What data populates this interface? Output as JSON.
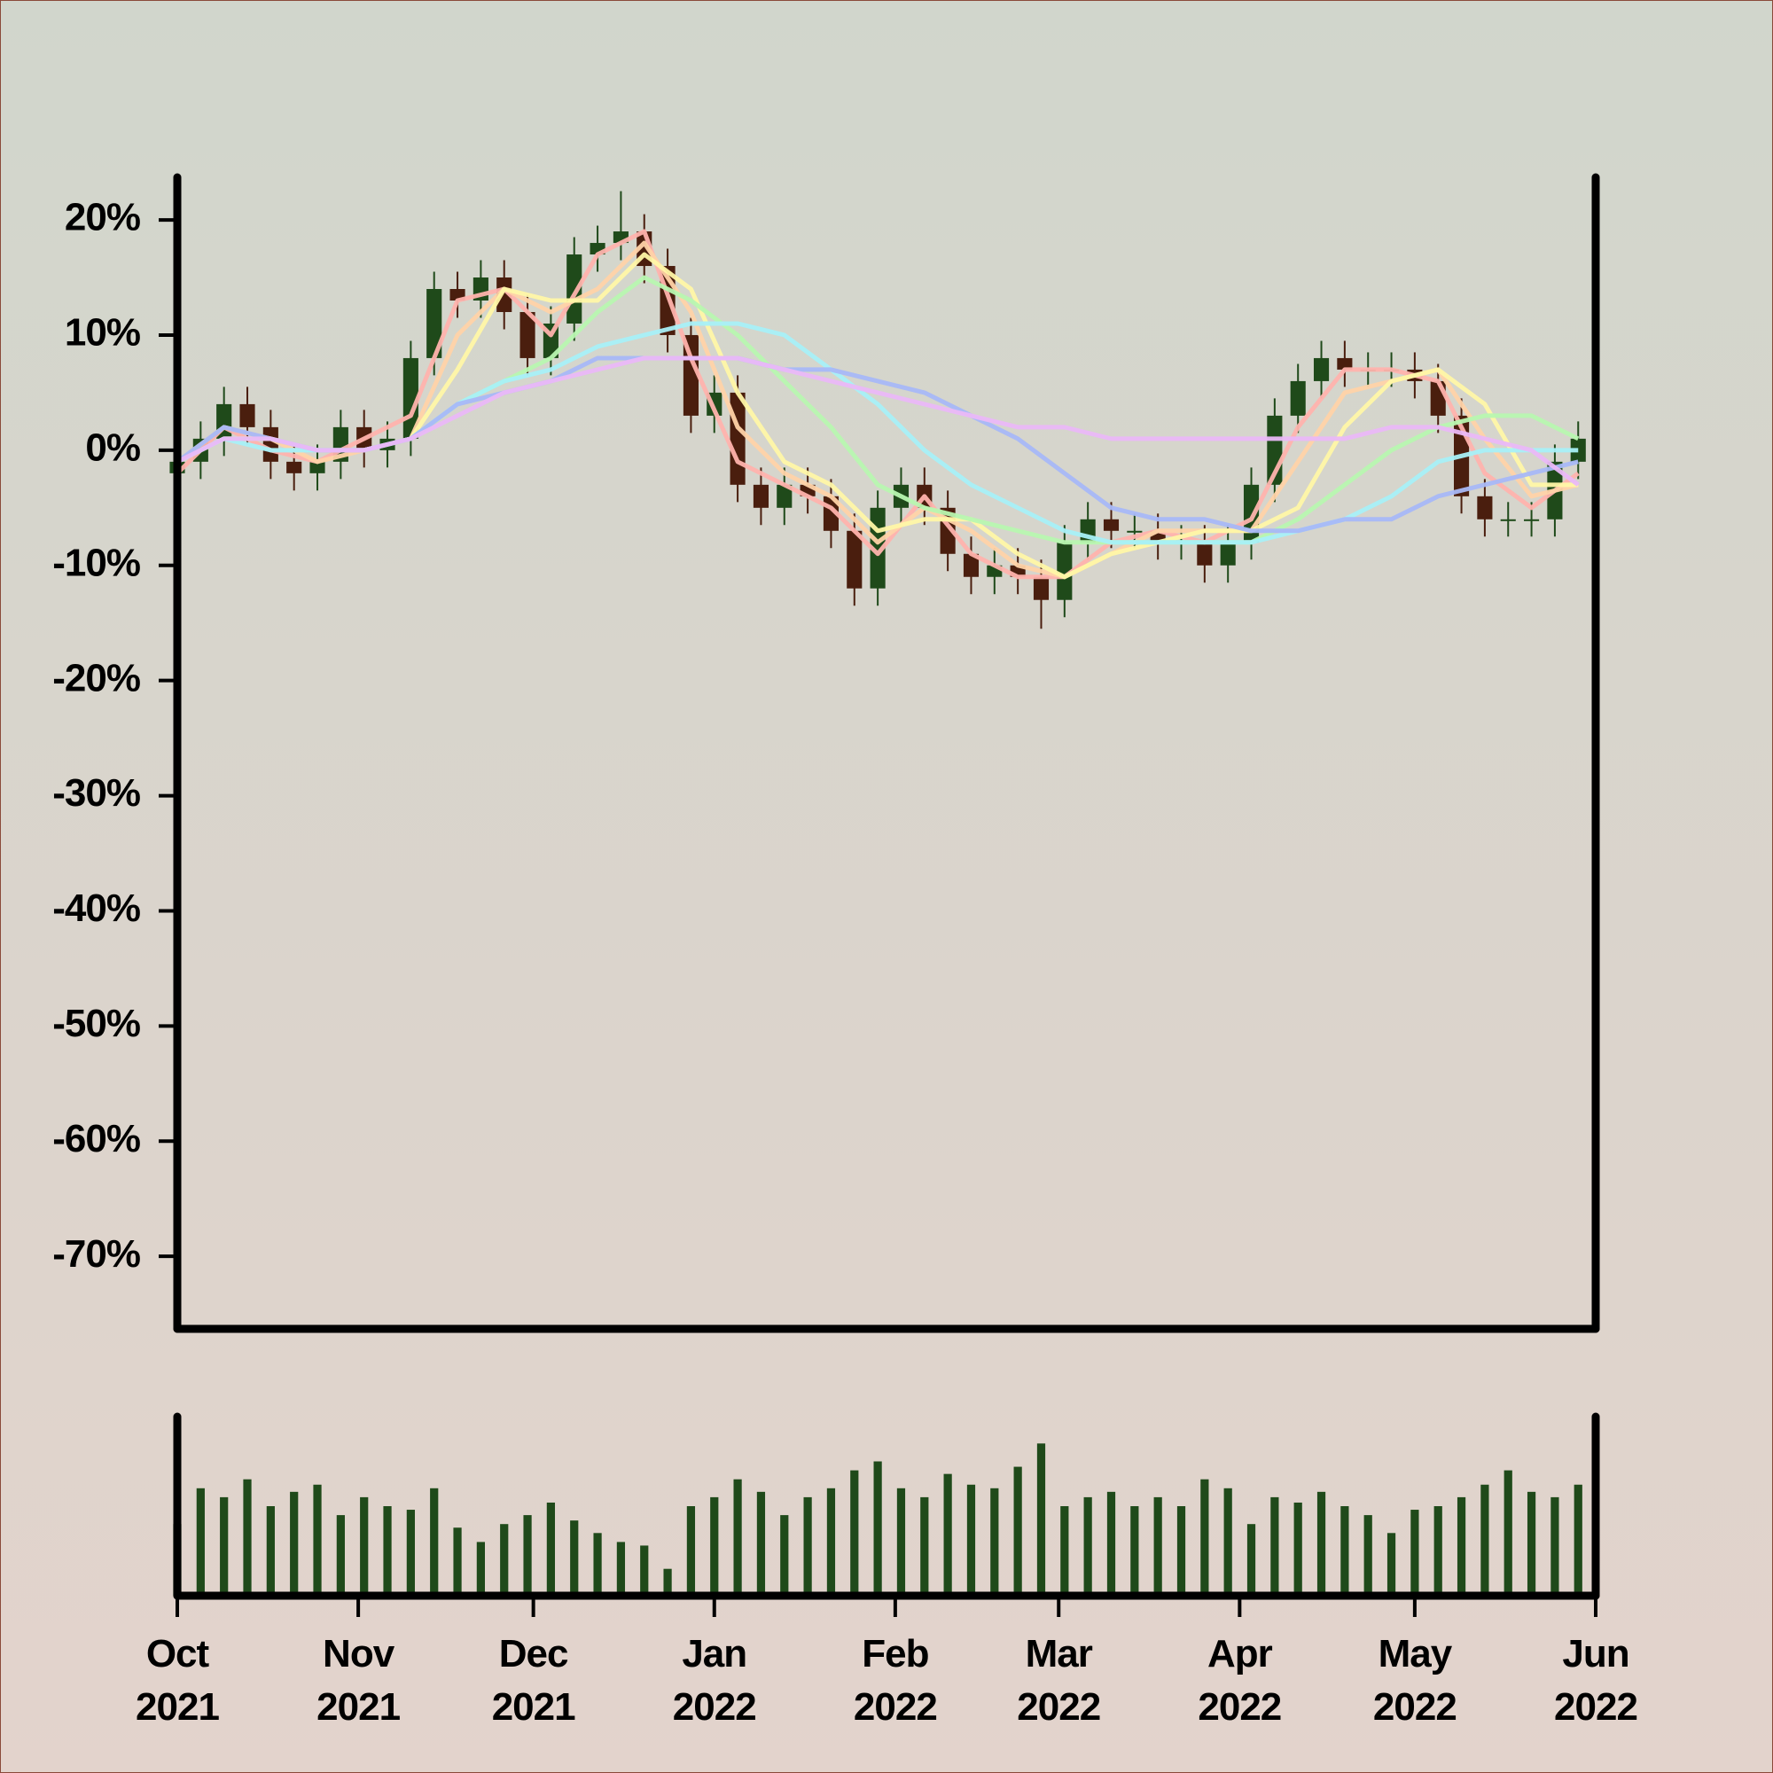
{
  "chart_data": {
    "type": "candlestick",
    "x": [
      0,
      4,
      8,
      12,
      16,
      20,
      24,
      28,
      32,
      36,
      40,
      44,
      48,
      52,
      56,
      60,
      64,
      68,
      72,
      76,
      80,
      84,
      88,
      92,
      96,
      100,
      104,
      108,
      112,
      116,
      120,
      124,
      128,
      132,
      136,
      140,
      144,
      148,
      152,
      156,
      160,
      164,
      168,
      172,
      176,
      180,
      184,
      188,
      192,
      196,
      200,
      204,
      208,
      212,
      216,
      220,
      224,
      228,
      232,
      236,
      240
    ],
    "open": [
      -2,
      -1,
      1,
      4,
      2,
      -1,
      -2,
      -1,
      2,
      0,
      1,
      8,
      14,
      13,
      15,
      12,
      8,
      11,
      17,
      18,
      19,
      16,
      10,
      3,
      5,
      -3,
      -5,
      -3,
      -4,
      -7,
      -12,
      -5,
      -3,
      -5,
      -9,
      -11,
      -10,
      -11,
      -13,
      -8,
      -6,
      -7,
      -7,
      -8,
      -8,
      -10,
      -8,
      -3,
      3,
      6,
      8,
      7,
      7,
      7,
      6,
      3,
      -4,
      -6,
      -6,
      -6,
      -1
    ],
    "high": [
      0.5,
      2.5,
      5.5,
      5.5,
      3.5,
      0.5,
      0.5,
      3.5,
      3.5,
      2.5,
      9.5,
      15.5,
      15.5,
      16.5,
      16.5,
      13.5,
      12.5,
      18.5,
      19.5,
      22.5,
      20.5,
      17.5,
      11.5,
      6.5,
      6.5,
      -1.5,
      -1.5,
      -1.5,
      -2.5,
      -5.5,
      -3.5,
      -1.5,
      -1.5,
      -3.5,
      -7.5,
      -8.5,
      -8.5,
      -9.5,
      -6.5,
      -4.5,
      -4.5,
      -5.5,
      -5.5,
      -6.5,
      -6.5,
      -6.5,
      -1.5,
      4.5,
      7.5,
      9.5,
      9.5,
      8.5,
      8.5,
      8.5,
      7.5,
      4.5,
      -2.5,
      -4.5,
      -4.5,
      0.5,
      2.5
    ],
    "low": [
      -3.5,
      -2.5,
      -0.5,
      0.5,
      -2.5,
      -3.5,
      -3.5,
      -2.5,
      -1.5,
      -1.5,
      -0.5,
      6.5,
      11.5,
      11.5,
      10.5,
      6.5,
      6.5,
      9.5,
      15.5,
      16.5,
      14.5,
      8.5,
      1.5,
      1.5,
      -4.5,
      -6.5,
      -6.5,
      -5.5,
      -8.5,
      -13.5,
      -13.5,
      -6.5,
      -6.5,
      -10.5,
      -12.5,
      -12.5,
      -12.5,
      -15.5,
      -14.5,
      -9.5,
      -8.5,
      -8.5,
      -9.5,
      -9.5,
      -11.5,
      -11.5,
      -9.5,
      -4.5,
      1.5,
      4.5,
      5.5,
      5.5,
      5.5,
      4.5,
      1.5,
      -5.5,
      -7.5,
      -7.5,
      -7.5,
      -7.5,
      -2.5
    ],
    "close": [
      -1,
      1,
      4,
      2,
      -1,
      -2,
      -1,
      2,
      0,
      1,
      8,
      14,
      13,
      15,
      12,
      8,
      11,
      17,
      18,
      19,
      16,
      10,
      3,
      5,
      -3,
      -5,
      -3,
      -4,
      -7,
      -12,
      -5,
      -3,
      -5,
      -9,
      -11,
      -10,
      -11,
      -13,
      -8,
      -6,
      -7,
      -7,
      -8,
      -8,
      -10,
      -8,
      -3,
      3,
      6,
      8,
      7,
      7,
      7,
      6,
      3,
      -4,
      -6,
      -6,
      -6,
      -1,
      1
    ],
    "up_color": "#1f4a1a",
    "down_color": "#4a1e0e",
    "ma_x": [
      0,
      8,
      16,
      24,
      32,
      40,
      48,
      56,
      64,
      72,
      80,
      88,
      96,
      104,
      112,
      120,
      128,
      136,
      144,
      152,
      160,
      168,
      176,
      184,
      192,
      200,
      208,
      216,
      224,
      232,
      240
    ],
    "moving_averages": [
      {
        "color": "#ffb3ad",
        "values": [
          -2,
          2,
          0,
          -1,
          1,
          3,
          13,
          14,
          10,
          17,
          19,
          8,
          -1,
          -3,
          -5,
          -9,
          -4,
          -9,
          -11,
          -11,
          -8,
          -7,
          -8,
          -6,
          2,
          7,
          7,
          6,
          -2,
          -5,
          -2
        ]
      },
      {
        "color": "#ffd3a8",
        "values": [
          -1,
          2,
          1,
          -1,
          0,
          1,
          10,
          14,
          12,
          14,
          18,
          12,
          2,
          -2,
          -4,
          -8,
          -5,
          -7,
          -10,
          -11,
          -9,
          -7,
          -7,
          -7,
          -1,
          5,
          6,
          7,
          1,
          -4,
          -3
        ]
      },
      {
        "color": "#fff7a6",
        "values": [
          -1,
          1,
          1,
          0,
          0,
          1,
          7,
          14,
          13,
          13,
          17,
          14,
          5,
          -1,
          -3,
          -7,
          -6,
          -6,
          -9,
          -11,
          -9,
          -8,
          -7,
          -7,
          -5,
          2,
          6,
          7,
          4,
          -3,
          -3
        ]
      },
      {
        "color": "#b8f7b0",
        "values": [
          -1,
          1,
          1,
          0,
          0,
          1,
          4,
          6,
          8,
          12,
          15,
          13,
          10,
          6,
          2,
          -3,
          -5,
          -6,
          -7,
          -8,
          -8,
          -8,
          -8,
          -8,
          -6,
          -3,
          0,
          2,
          3,
          3,
          1
        ]
      },
      {
        "color": "#a8f0f7",
        "values": [
          -1,
          1,
          0,
          0,
          0,
          1,
          4,
          6,
          7,
          9,
          10,
          11,
          11,
          10,
          7,
          4,
          0,
          -3,
          -5,
          -7,
          -8,
          -8,
          -8,
          -8,
          -7,
          -6,
          -4,
          -1,
          0,
          0,
          0
        ]
      },
      {
        "color": "#a8b8f7",
        "values": [
          -1,
          2,
          1,
          0,
          0,
          1,
          4,
          5,
          6,
          8,
          8,
          8,
          8,
          7,
          7,
          6,
          5,
          3,
          1,
          -2,
          -5,
          -6,
          -6,
          -7,
          -7,
          -6,
          -6,
          -4,
          -3,
          -2,
          -1
        ]
      },
      {
        "color": "#eab8f7",
        "values": [
          -1,
          1,
          1,
          0,
          0,
          1,
          3,
          5,
          6,
          7,
          8,
          8,
          8,
          7,
          6,
          5,
          4,
          3,
          2,
          2,
          1,
          1,
          1,
          1,
          1,
          1,
          2,
          2,
          1,
          0,
          -3
        ]
      }
    ],
    "volume": {
      "color": "#1f4a1a",
      "ylim": [
        0,
        100
      ],
      "values": [
        40,
        60,
        55,
        65,
        50,
        58,
        62,
        45,
        55,
        50,
        48,
        60,
        38,
        30,
        40,
        45,
        52,
        42,
        35,
        30,
        28,
        15,
        50,
        55,
        65,
        58,
        45,
        55,
        60,
        70,
        75,
        60,
        55,
        68,
        62,
        60,
        72,
        85,
        50,
        55,
        58,
        50,
        55,
        50,
        65,
        60,
        40,
        55,
        52,
        58,
        50,
        45,
        35,
        48,
        50,
        55,
        62,
        70,
        58,
        55,
        62
      ]
    },
    "xlim": [
      0,
      243
    ],
    "xticks": [
      {
        "value": 0,
        "label": "Oct 2021"
      },
      {
        "value": 31,
        "label": "Nov 2021"
      },
      {
        "value": 61,
        "label": "Dec 2021"
      },
      {
        "value": 92,
        "label": "Jan 2022"
      },
      {
        "value": 123,
        "label": "Feb 2022"
      },
      {
        "value": 151,
        "label": "Mar 2022"
      },
      {
        "value": 182,
        "label": "Apr 2022"
      },
      {
        "value": 212,
        "label": "May 2022"
      },
      {
        "value": 243,
        "label": "Jun 2022"
      }
    ],
    "ylim": [
      -76.3,
      23.7
    ],
    "yticks": [
      {
        "value": 20,
        "label": "20%"
      },
      {
        "value": 10,
        "label": "10%"
      },
      {
        "value": 0,
        "label": "0%"
      },
      {
        "value": -10,
        "label": "-10%"
      },
      {
        "value": -20,
        "label": "-20%"
      },
      {
        "value": -30,
        "label": "-30%"
      },
      {
        "value": -40,
        "label": "-40%"
      },
      {
        "value": -50,
        "label": "-50%"
      },
      {
        "value": -60,
        "label": "-60%"
      },
      {
        "value": -70,
        "label": "-70%"
      }
    ]
  }
}
